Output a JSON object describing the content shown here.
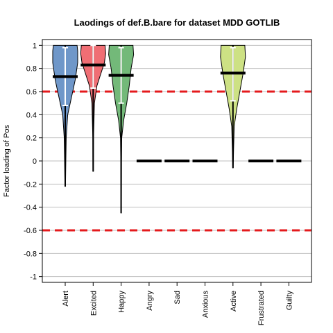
{
  "chart_data": {
    "type": "violin",
    "title": "Laodings of def.B.bare for dataset MDD GOTLIB",
    "xlabel": "",
    "ylabel": "Factor loading of Pos",
    "ylim": [
      -1.05,
      1.05
    ],
    "yticks": [
      1,
      0.8,
      0.6,
      0.4,
      0.2,
      0,
      -0.2,
      -0.4,
      -0.6,
      -0.8,
      -1
    ],
    "ytick_labels": [
      "1",
      "0.8",
      "0.6",
      "0.4",
      "0.2",
      "0",
      "-0.2",
      "-0.4",
      "-0.6",
      "-0.8",
      "-1"
    ],
    "grid": "horizontal",
    "reference_lines": [
      {
        "y": 0.6,
        "color": "#e41a1c",
        "style": "dashed"
      },
      {
        "y": -0.6,
        "color": "#e41a1c",
        "style": "dashed"
      }
    ],
    "categories": [
      "Alert",
      "Excited",
      "Happy",
      "Angry",
      "Sad",
      "Anxious",
      "Active",
      "Frustrated",
      "Guilty"
    ],
    "series": [
      {
        "category": "Alert",
        "color": "#6f97c9",
        "min": -0.22,
        "max": 1.0,
        "mean": 0.73,
        "sd_low": 0.48,
        "sd_high": 0.98,
        "profile": [
          [
            -0.22,
            0.02
          ],
          [
            0.0,
            0.05
          ],
          [
            0.2,
            0.08
          ],
          [
            0.4,
            0.2
          ],
          [
            0.55,
            0.5
          ],
          [
            0.7,
            0.8
          ],
          [
            0.85,
            1.0
          ],
          [
            0.95,
            1.0
          ],
          [
            1.0,
            0.95
          ]
        ]
      },
      {
        "category": "Excited",
        "color": "#f06e74",
        "min": -0.09,
        "max": 1.0,
        "mean": 0.83,
        "sd_low": 0.63,
        "sd_high": 1.0,
        "profile": [
          [
            -0.09,
            0.02
          ],
          [
            0.2,
            0.03
          ],
          [
            0.5,
            0.1
          ],
          [
            0.65,
            0.3
          ],
          [
            0.75,
            0.6
          ],
          [
            0.85,
            0.9
          ],
          [
            0.93,
            1.0
          ],
          [
            1.0,
            0.95
          ]
        ]
      },
      {
        "category": "Happy",
        "color": "#73b979",
        "min": -0.45,
        "max": 1.0,
        "mean": 0.74,
        "sd_low": 0.5,
        "sd_high": 0.98,
        "profile": [
          [
            -0.45,
            0.02
          ],
          [
            0.0,
            0.03
          ],
          [
            0.2,
            0.05
          ],
          [
            0.35,
            0.2
          ],
          [
            0.5,
            0.45
          ],
          [
            0.65,
            0.65
          ],
          [
            0.8,
            0.8
          ],
          [
            0.92,
            1.0
          ],
          [
            1.0,
            0.95
          ]
        ]
      },
      {
        "category": "Angry",
        "color": "#000000",
        "min": 0,
        "max": 0,
        "mean": 0
      },
      {
        "category": "Sad",
        "color": "#000000",
        "min": 0,
        "max": 0,
        "mean": 0
      },
      {
        "category": "Anxious",
        "color": "#000000",
        "min": 0,
        "max": 0,
        "mean": 0
      },
      {
        "category": "Active",
        "color": "#cde184",
        "min": -0.06,
        "max": 1.0,
        "mean": 0.76,
        "sd_low": 0.52,
        "sd_high": 0.98,
        "profile": [
          [
            -0.06,
            0.02
          ],
          [
            0.1,
            0.05
          ],
          [
            0.3,
            0.1
          ],
          [
            0.45,
            0.3
          ],
          [
            0.6,
            0.55
          ],
          [
            0.75,
            0.8
          ],
          [
            0.9,
            1.0
          ],
          [
            1.0,
            0.95
          ]
        ]
      },
      {
        "category": "Frustrated",
        "color": "#000000",
        "min": 0,
        "max": 0,
        "mean": 0
      },
      {
        "category": "Guilty",
        "color": "#000000",
        "min": 0,
        "max": 0,
        "mean": 0
      }
    ]
  }
}
